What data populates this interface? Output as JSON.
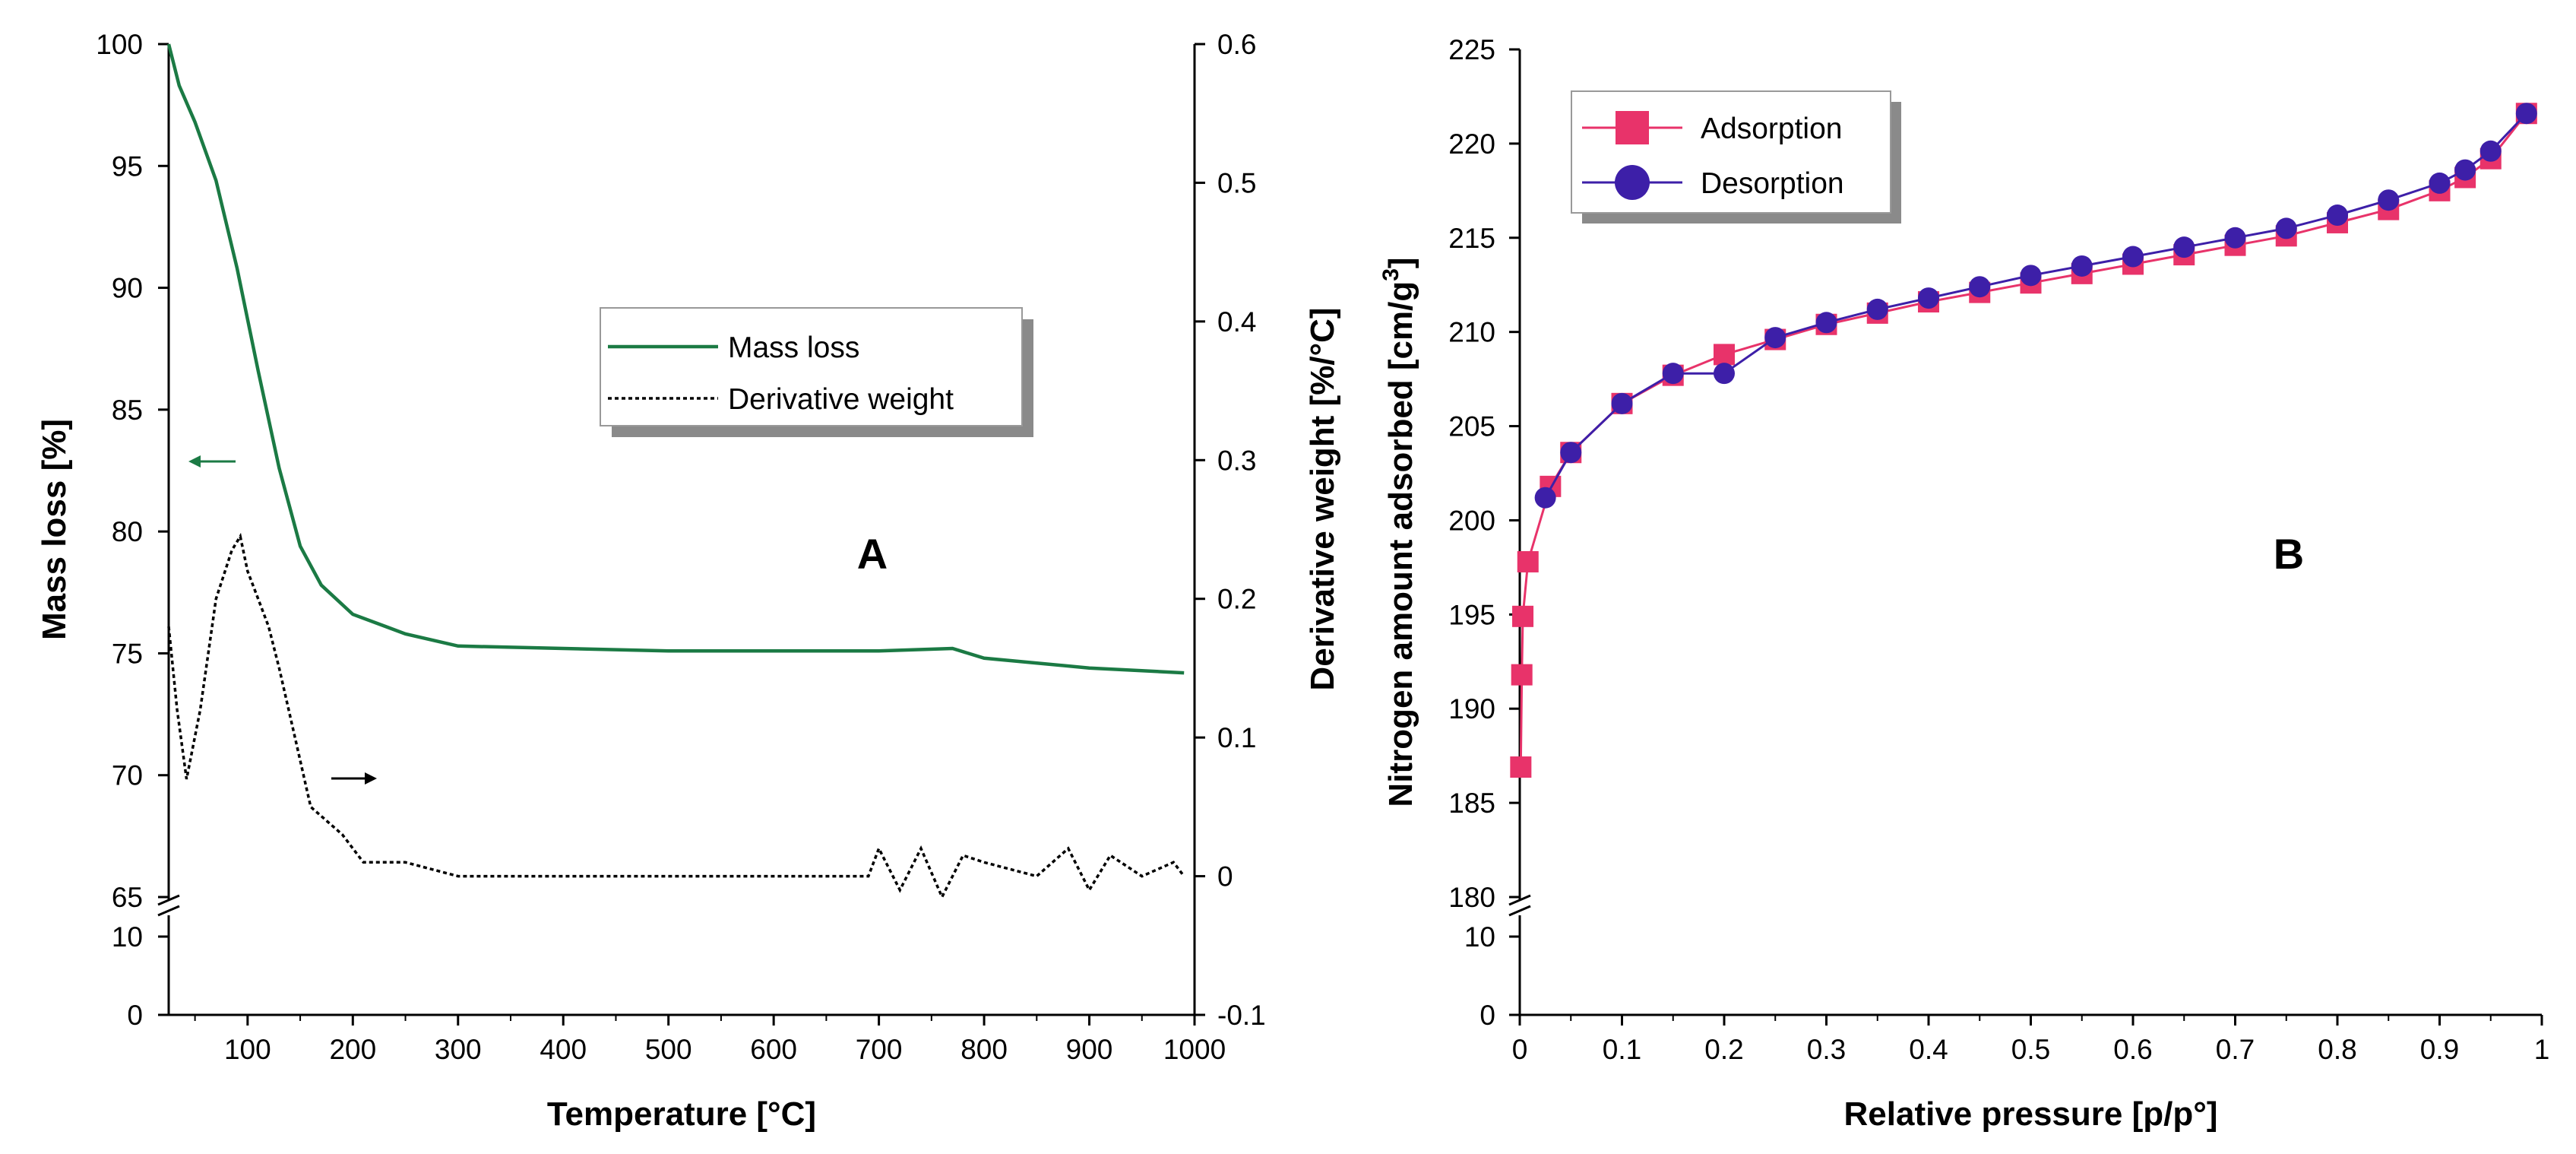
{
  "chart_data": [
    {
      "panel_label": "A",
      "type": "line",
      "xlabel": "Temperature [°C]",
      "ylabel": "Mass loss [%]",
      "y2label": "Derivative weight [%/°C]",
      "xlim": [
        25,
        1000
      ],
      "xticks": [
        "100",
        "200",
        "300",
        "400",
        "500",
        "600",
        "700",
        "800",
        "900",
        "1000"
      ],
      "ylim_upper": [
        65,
        100
      ],
      "yticks_upper": [
        "65",
        "70",
        "75",
        "80",
        "85",
        "90",
        "95",
        "100"
      ],
      "ylim_lower": [
        0,
        10
      ],
      "yticks_lower": [
        "0",
        "10"
      ],
      "y_axis_break": true,
      "y2lim": [
        -0.1,
        0.6
      ],
      "y2ticks": [
        "-0.1",
        "0",
        "0.1",
        "0.2",
        "0.3",
        "0.4",
        "0.5",
        "0.6"
      ],
      "legend_position": "upper-middle",
      "series": [
        {
          "name": "Mass loss",
          "axis": "left",
          "color": "#1b7a44",
          "style": "solid",
          "x": [
            25,
            35,
            50,
            70,
            90,
            110,
            130,
            150,
            170,
            200,
            250,
            300,
            400,
            500,
            600,
            700,
            770,
            800,
            900,
            990
          ],
          "y": [
            100,
            98.3,
            96.8,
            94.4,
            90.8,
            86.6,
            82.6,
            79.4,
            77.8,
            76.6,
            75.8,
            75.3,
            75.2,
            75.1,
            75.1,
            75.1,
            75.2,
            74.8,
            74.4,
            74.2
          ]
        },
        {
          "name": "Derivative weight",
          "axis": "right",
          "color": "#000000",
          "style": "dotted",
          "x": [
            25,
            33,
            42,
            55,
            70,
            85,
            93,
            100,
            110,
            120,
            130,
            145,
            160,
            175,
            190,
            210,
            250,
            300,
            400,
            500,
            600,
            690,
            700,
            720,
            740,
            760,
            780,
            800,
            850,
            880,
            900,
            920,
            950,
            980,
            990
          ],
          "y": [
            0.18,
            0.12,
            0.07,
            0.12,
            0.2,
            0.235,
            0.245,
            0.22,
            0.2,
            0.18,
            0.15,
            0.1,
            0.05,
            0.04,
            0.03,
            0.01,
            0.01,
            0.0,
            0.0,
            0.0,
            0.0,
            0.0,
            0.02,
            -0.01,
            0.02,
            -0.015,
            0.015,
            0.01,
            0.0,
            0.02,
            -0.01,
            0.015,
            0.0,
            0.01,
            0.0
          ]
        }
      ]
    },
    {
      "panel_label": "B",
      "type": "line",
      "xlabel": "Relative pressure [p/p°]",
      "ylabel": "Nitrogen amount adsorbed [cm/g",
      "ylabel_superscript": "3",
      "ylabel_end": "]",
      "xlim": [
        0,
        1
      ],
      "xticks": [
        "0",
        "0.1",
        "0.2",
        "0.3",
        "0.4",
        "0.5",
        "0.6",
        "0.7",
        "0.8",
        "0.9",
        "1"
      ],
      "ylim_upper": [
        180,
        225
      ],
      "yticks_upper": [
        "180",
        "185",
        "190",
        "195",
        "200",
        "205",
        "210",
        "215",
        "220",
        "225"
      ],
      "ylim_lower": [
        0,
        10
      ],
      "yticks_lower": [
        "0",
        "10"
      ],
      "y_axis_break": true,
      "legend_position": "top-left",
      "series": [
        {
          "name": "Adsorption",
          "color": "#e8336a",
          "marker": "square",
          "x": [
            0.001,
            0.002,
            0.003,
            0.008,
            0.03,
            0.05,
            0.1,
            0.15,
            0.2,
            0.25,
            0.3,
            0.35,
            0.4,
            0.45,
            0.5,
            0.55,
            0.6,
            0.65,
            0.7,
            0.75,
            0.8,
            0.85,
            0.9,
            0.925,
            0.95,
            0.985
          ],
          "y": [
            186.9,
            191.8,
            194.9,
            197.8,
            201.8,
            203.6,
            206.2,
            207.7,
            208.8,
            209.6,
            210.4,
            211.0,
            211.6,
            212.1,
            212.6,
            213.1,
            213.6,
            214.1,
            214.6,
            215.1,
            215.8,
            216.5,
            217.5,
            218.2,
            219.2,
            221.6
          ]
        },
        {
          "name": "Desorption",
          "color": "#3d1fa8",
          "marker": "circle",
          "x": [
            0.025,
            0.05,
            0.1,
            0.15,
            0.2,
            0.25,
            0.3,
            0.35,
            0.4,
            0.45,
            0.5,
            0.55,
            0.6,
            0.65,
            0.7,
            0.75,
            0.8,
            0.85,
            0.9,
            0.925,
            0.95,
            0.985
          ],
          "y": [
            201.2,
            203.6,
            206.2,
            207.8,
            207.8,
            209.7,
            210.5,
            211.2,
            211.8,
            212.4,
            213.0,
            213.5,
            214.0,
            214.5,
            215.0,
            215.5,
            216.2,
            217.0,
            217.9,
            218.6,
            219.6,
            221.6
          ]
        }
      ]
    }
  ]
}
